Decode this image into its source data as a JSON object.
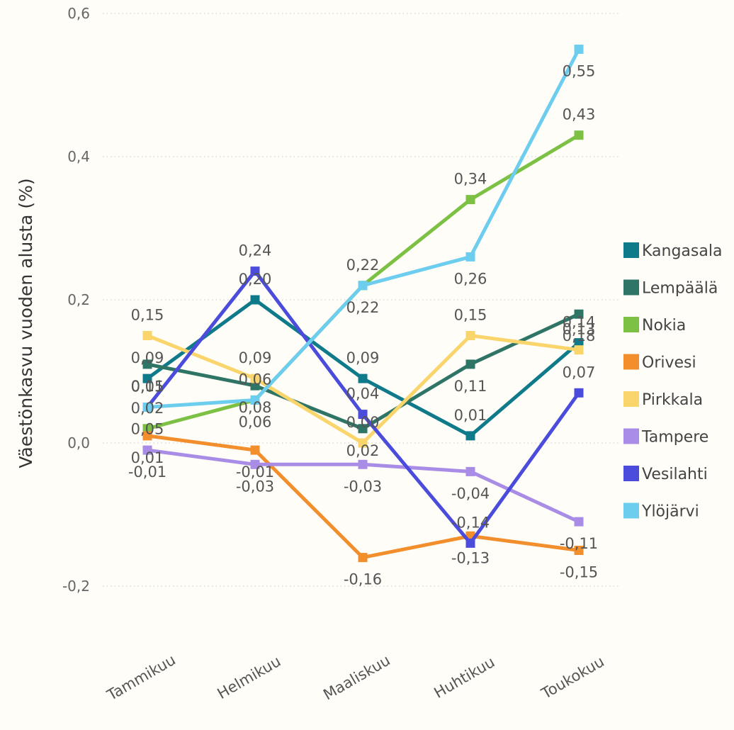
{
  "chart_data": {
    "type": "line",
    "title": "",
    "xlabel": "",
    "ylabel": "Väestönkasvu vuoden alusta (%)",
    "ylim": [
      -0.2,
      0.6
    ],
    "yticks": [
      -0.2,
      0.0,
      0.2,
      0.4,
      0.6
    ],
    "ytick_labels": [
      "-0,2",
      "0,0",
      "0,2",
      "0,4",
      "0,6"
    ],
    "categories": [
      "Tammikuu",
      "Helmikuu",
      "Maaliskuu",
      "Huhtikuu",
      "Toukokuu"
    ],
    "grid": true,
    "legend": "right",
    "series": [
      {
        "name": "Kangasala",
        "color": "#0f7a8a",
        "values": [
          0.09,
          0.2,
          0.09,
          0.01,
          0.14
        ],
        "labels": [
          "0,09",
          "0,20",
          "0,09",
          "0,01",
          "0,14"
        ]
      },
      {
        "name": "Lempäälä",
        "color": "#2f7566",
        "values": [
          0.11,
          0.08,
          0.02,
          0.11,
          0.18
        ],
        "labels": [
          "0,11",
          "0,08",
          "0,02",
          "0,11",
          "0,18"
        ]
      },
      {
        "name": "Nokia",
        "color": "#7cc044",
        "values": [
          0.02,
          0.06,
          0.22,
          0.34,
          0.43
        ],
        "labels": [
          "0,02",
          "0,06",
          "0,22",
          "0,34",
          "0,43"
        ]
      },
      {
        "name": "Orivesi",
        "color": "#f28e2b",
        "values": [
          0.01,
          -0.01,
          -0.16,
          -0.13,
          -0.15
        ],
        "labels": [
          "0,01",
          "-0,01",
          "-0,16",
          "-0,13",
          "-0,15"
        ]
      },
      {
        "name": "Pirkkala",
        "color": "#fad56b",
        "values": [
          0.15,
          0.09,
          0.0,
          0.15,
          0.13
        ],
        "labels": [
          "0,15",
          "0,09",
          "0,00",
          "0,15",
          "0,13"
        ]
      },
      {
        "name": "Tampere",
        "color": "#a98ce6",
        "values": [
          -0.01,
          -0.03,
          -0.03,
          -0.04,
          -0.11
        ],
        "labels": [
          "-0,01",
          "-0,03",
          "-0,03",
          "-0,04",
          "-0,11"
        ]
      },
      {
        "name": "Vesilahti",
        "color": "#4b4bdc",
        "values": [
          0.05,
          0.24,
          0.04,
          -0.14,
          0.07
        ],
        "labels": [
          "0,05",
          "0,24",
          "0,04",
          "-0,14",
          "0,07"
        ]
      },
      {
        "name": "Ylöjärvi",
        "color": "#6dcdef",
        "values": [
          0.05,
          0.06,
          0.22,
          0.26,
          0.55
        ],
        "labels": [
          "0,05",
          "0,06",
          "0,22",
          "0,26",
          "0,55"
        ]
      }
    ]
  }
}
